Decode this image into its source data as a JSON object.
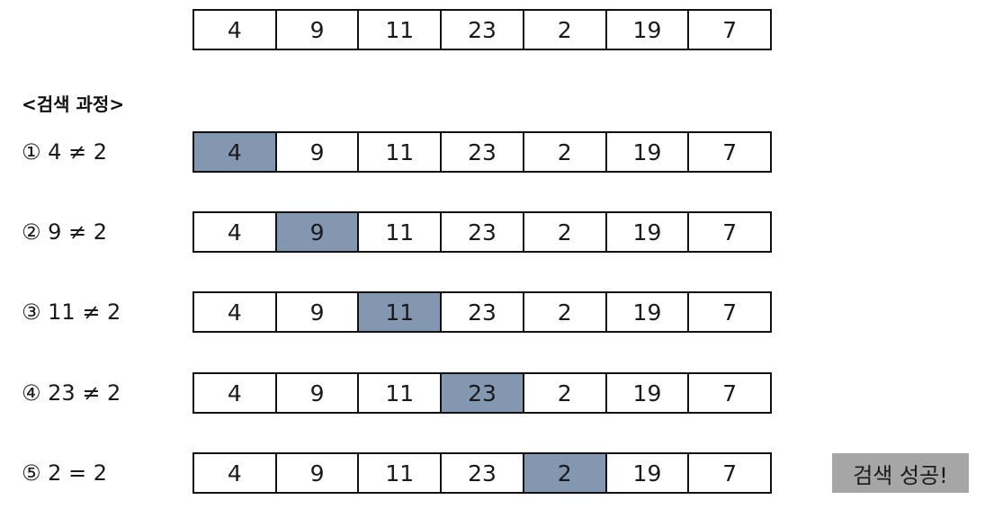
{
  "array": [
    "4",
    "9",
    "11",
    "23",
    "2",
    "19",
    "7"
  ],
  "section_title": "<검색 과정>",
  "steps": [
    {
      "label": "① 4 ≠ 2",
      "highlight_index": 0
    },
    {
      "label": "② 9 ≠ 2",
      "highlight_index": 1
    },
    {
      "label": "③ 11 ≠ 2",
      "highlight_index": 2
    },
    {
      "label": "④ 23 ≠ 2",
      "highlight_index": 3
    },
    {
      "label": "⑤ 2 = 2",
      "highlight_index": 4
    }
  ],
  "result": "검색 성공!",
  "colors": {
    "highlight": "#8497b0",
    "result_bg": "#a6a6a6"
  }
}
